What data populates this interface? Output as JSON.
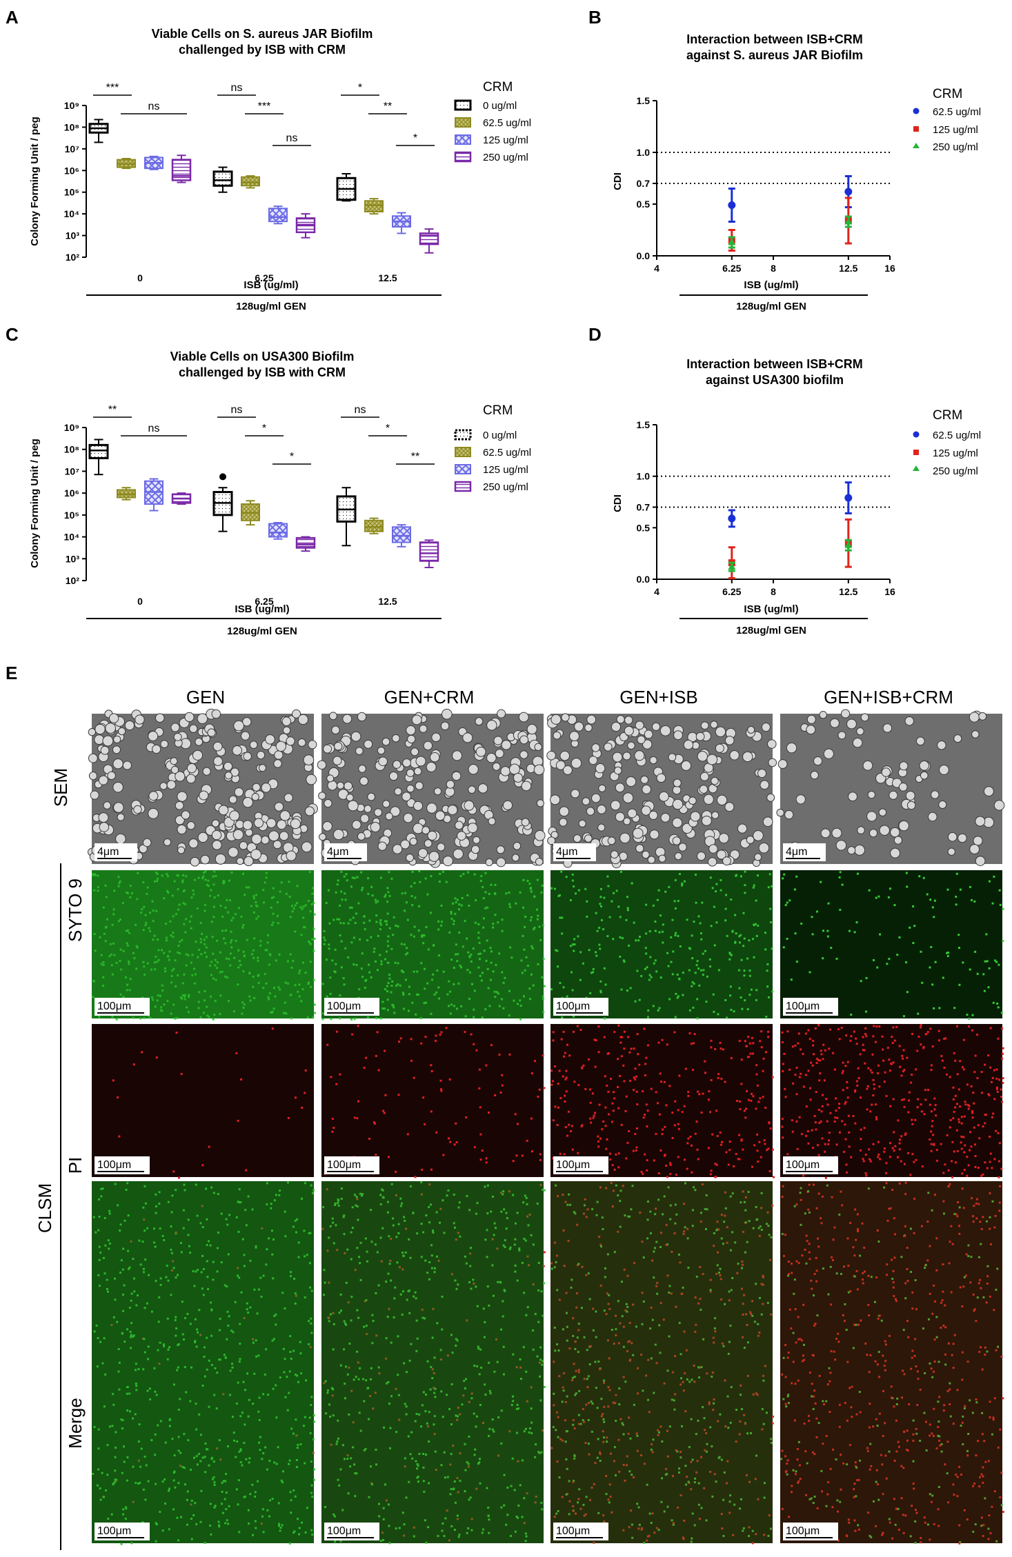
{
  "colors": {
    "c0": "#000000",
    "c62": "#8c8a1e",
    "c125": "#6a6ae6",
    "c250": "#7a28a8",
    "ci62": "#1a2fd6",
    "ci125": "#e0241b",
    "ci250": "#26b43a"
  },
  "panels": {
    "A": "A",
    "B": "B",
    "C": "C",
    "D": "D",
    "E": "E"
  },
  "box_legend": {
    "title": "CRM",
    "items": [
      "0 ug/ml",
      "62.5 ug/ml",
      "125 ug/ml",
      "250 ug/ml"
    ]
  },
  "ci_legend": {
    "title": "CRM",
    "items": [
      "62.5 ug/ml",
      "125 ug/ml",
      "250 ug/ml"
    ]
  },
  "chart_data": [
    {
      "id": "A",
      "type": "box",
      "title": [
        "Viable Cells on S. aureus JAR Biofilm",
        "challenged by ISB with CRM"
      ],
      "xlabel": "ISB (ug/ml)",
      "ylabel": "Colony Forming Unit / peg",
      "bracket_label": "128ug/ml GEN",
      "categories": [
        "0",
        "6.25",
        "12.5"
      ],
      "yscale": "log",
      "ylim": [
        2,
        9
      ],
      "yticks": [
        2,
        3,
        4,
        5,
        6,
        7,
        8,
        9
      ],
      "tick_labels": [
        "10²",
        "10³",
        "10⁴",
        "10⁵",
        "10⁶",
        "10⁷",
        "10⁸",
        "10⁹"
      ],
      "series": [
        {
          "name": "0 ug/ml",
          "boxes": [
            [
              7.3,
              7.75,
              7.95,
              8.15,
              8.35
            ],
            [
              5.0,
              5.3,
              5.55,
              5.95,
              6.15
            ],
            [
              4.6,
              4.65,
              5.15,
              5.65,
              5.85
            ]
          ]
        },
        {
          "name": "62.5 ug/ml",
          "boxes": [
            [
              6.1,
              6.15,
              6.3,
              6.5,
              6.55
            ],
            [
              5.2,
              5.3,
              5.45,
              5.7,
              5.75
            ],
            [
              4.0,
              4.1,
              4.4,
              4.6,
              4.7
            ]
          ]
        },
        {
          "name": "125 ug/ml",
          "boxes": [
            [
              6.05,
              6.1,
              6.35,
              6.6,
              6.65
            ],
            [
              3.55,
              3.65,
              3.85,
              4.25,
              4.35
            ],
            [
              3.1,
              3.4,
              3.65,
              3.9,
              4.05
            ]
          ]
        },
        {
          "name": "250 ug/ml",
          "boxes": [
            [
              5.45,
              5.55,
              5.75,
              6.5,
              6.7
            ],
            [
              2.9,
              3.15,
              3.5,
              3.8,
              4.0
            ],
            [
              2.2,
              2.6,
              3.0,
              3.1,
              3.3
            ]
          ]
        }
      ],
      "significance": [
        {
          "group": 0,
          "from": 0,
          "to": 1,
          "label": "***",
          "level": 0
        },
        {
          "group": 0,
          "from": 1,
          "to": 3,
          "label": "ns",
          "level": 1
        },
        {
          "group": 1,
          "from": 0,
          "to": 1,
          "label": "ns",
          "level": 0
        },
        {
          "group": 1,
          "from": 1,
          "to": 2,
          "label": "***",
          "level": 1
        },
        {
          "group": 1,
          "from": 2,
          "to": 3,
          "label": "ns",
          "level": 2
        },
        {
          "group": 2,
          "from": 0,
          "to": 1,
          "label": "*",
          "level": 0
        },
        {
          "group": 2,
          "from": 1,
          "to": 2,
          "label": "**",
          "level": 1
        },
        {
          "group": 2,
          "from": 2,
          "to": 3,
          "label": "*",
          "level": 2
        }
      ]
    },
    {
      "id": "B",
      "type": "scatter",
      "title": [
        "Interaction between ISB+CRM",
        "against S. aureus JAR Biofilm"
      ],
      "xlabel": "ISB (ug/ml)",
      "ylabel": "CDI",
      "bracket_label": "128ug/ml GEN",
      "xscale": "log2",
      "xlim": [
        4,
        16
      ],
      "xticks": [
        4,
        6.25,
        8,
        12.5,
        16
      ],
      "xtick_labels": [
        "4",
        "6.25",
        "8",
        "12.5",
        "16"
      ],
      "ylim": [
        0,
        1.5
      ],
      "yticks": [
        0.0,
        0.5,
        0.7,
        1.0,
        1.5
      ],
      "ytick_labels": [
        "0.0",
        "0.5",
        "0.7",
        "1.0",
        "1.5"
      ],
      "reference_lines": [
        1.0,
        0.7
      ],
      "series": [
        {
          "name": "62.5 ug/ml",
          "points": [
            [
              6.25,
              0.49,
              0.16
            ],
            [
              12.5,
              0.62,
              0.15
            ]
          ]
        },
        {
          "name": "125 ug/ml",
          "points": [
            [
              6.25,
              0.15,
              0.1
            ],
            [
              12.5,
              0.34,
              0.22
            ]
          ]
        },
        {
          "name": "250 ug/ml",
          "points": [
            [
              6.25,
              0.13,
              0.05
            ],
            [
              12.5,
              0.33,
              0.05
            ]
          ]
        }
      ]
    },
    {
      "id": "C",
      "type": "box",
      "title": [
        "Viable Cells on USA300 Biofilm",
        "challenged by ISB with CRM"
      ],
      "xlabel": "ISB (ug/ml)",
      "ylabel": "Colony Forming Unit / peg",
      "bracket_label": "128ug/ml GEN",
      "categories": [
        "0",
        "6.25",
        "12.5"
      ],
      "yscale": "log",
      "ylim": [
        2,
        9
      ],
      "yticks": [
        2,
        3,
        4,
        5,
        6,
        7,
        8,
        9
      ],
      "tick_labels": [
        "10²",
        "10³",
        "10⁴",
        "10⁵",
        "10⁶",
        "10⁷",
        "10⁸",
        "10⁹"
      ],
      "series": [
        {
          "name": "0 ug/ml",
          "boxes": [
            [
              6.85,
              7.6,
              7.95,
              8.2,
              8.45
            ],
            [
              4.25,
              5.0,
              5.55,
              6.05,
              6.25
            ],
            [
              3.6,
              4.7,
              5.25,
              5.85,
              6.25
            ]
          ]
        },
        {
          "name": "62.5 ug/ml",
          "boxes": [
            [
              5.7,
              5.8,
              5.95,
              6.15,
              6.25
            ],
            [
              4.55,
              4.75,
              5.1,
              5.5,
              5.65
            ],
            [
              4.15,
              4.25,
              4.45,
              4.75,
              4.85
            ]
          ]
        },
        {
          "name": "125 ug/ml",
          "boxes": [
            [
              5.2,
              5.5,
              6.05,
              6.55,
              6.65
            ],
            [
              3.9,
              4.0,
              4.2,
              4.6,
              4.65
            ],
            [
              3.55,
              3.75,
              4.05,
              4.45,
              4.55
            ]
          ]
        },
        {
          "name": "250 ug/ml",
          "boxes": [
            [
              5.5,
              5.55,
              5.75,
              5.95,
              6.0
            ],
            [
              3.35,
              3.5,
              3.65,
              3.95,
              4.0
            ],
            [
              2.6,
              2.9,
              3.25,
              3.75,
              3.85
            ]
          ]
        }
      ],
      "outliers": [
        {
          "series": 0,
          "group": 1,
          "value": 6.75
        }
      ],
      "significance": [
        {
          "group": 0,
          "from": 0,
          "to": 1,
          "label": "**",
          "level": 0
        },
        {
          "group": 0,
          "from": 1,
          "to": 3,
          "label": "ns",
          "level": 1
        },
        {
          "group": 1,
          "from": 0,
          "to": 1,
          "label": "ns",
          "level": 0
        },
        {
          "group": 1,
          "from": 1,
          "to": 2,
          "label": "*",
          "level": 1
        },
        {
          "group": 1,
          "from": 2,
          "to": 3,
          "label": "*",
          "level": 2
        },
        {
          "group": 2,
          "from": 0,
          "to": 1,
          "label": "ns",
          "level": 0
        },
        {
          "group": 2,
          "from": 1,
          "to": 2,
          "label": "*",
          "level": 1
        },
        {
          "group": 2,
          "from": 2,
          "to": 3,
          "label": "**",
          "level": 2
        }
      ]
    },
    {
      "id": "D",
      "type": "scatter",
      "title": [
        "Interaction between ISB+CRM",
        "against USA300 biofilm"
      ],
      "xlabel": "ISB (ug/ml)",
      "ylabel": "CDI",
      "bracket_label": "128ug/ml GEN",
      "xscale": "log2",
      "xlim": [
        4,
        16
      ],
      "xticks": [
        4,
        6.25,
        8,
        12.5,
        16
      ],
      "xtick_labels": [
        "4",
        "6.25",
        "8",
        "12.5",
        "16"
      ],
      "ylim": [
        0,
        1.5
      ],
      "yticks": [
        0.0,
        0.5,
        0.7,
        1.0,
        1.5
      ],
      "ytick_labels": [
        "0.0",
        "0.5",
        "0.7",
        "1.0",
        "1.5"
      ],
      "reference_lines": [
        1.0,
        0.7
      ],
      "series": [
        {
          "name": "62.5 ug/ml",
          "points": [
            [
              6.25,
              0.59,
              0.08
            ],
            [
              12.5,
              0.79,
              0.15
            ]
          ]
        },
        {
          "name": "125 ug/ml",
          "points": [
            [
              6.25,
              0.16,
              0.15
            ],
            [
              12.5,
              0.35,
              0.23
            ]
          ]
        },
        {
          "name": "250 ug/ml",
          "points": [
            [
              6.25,
              0.12,
              0.04
            ],
            [
              12.5,
              0.33,
              0.05
            ]
          ]
        }
      ]
    }
  ],
  "panel_e": {
    "columns": [
      "GEN",
      "GEN+CRM",
      "GEN+ISB",
      "GEN+ISB+CRM"
    ],
    "row_labels": {
      "sem": "SEM",
      "syto": "SYTO 9",
      "pi": "PI",
      "merge": "Merge",
      "clsm": "CLSM"
    },
    "sem_scale": "4μm",
    "clsm_scale": "100μm",
    "sem_density": [
      0.9,
      0.85,
      0.7,
      0.3
    ],
    "syto_intensity": [
      0.95,
      0.8,
      0.55,
      0.25
    ],
    "pi_intensity": [
      0.05,
      0.2,
      0.6,
      0.85
    ]
  }
}
